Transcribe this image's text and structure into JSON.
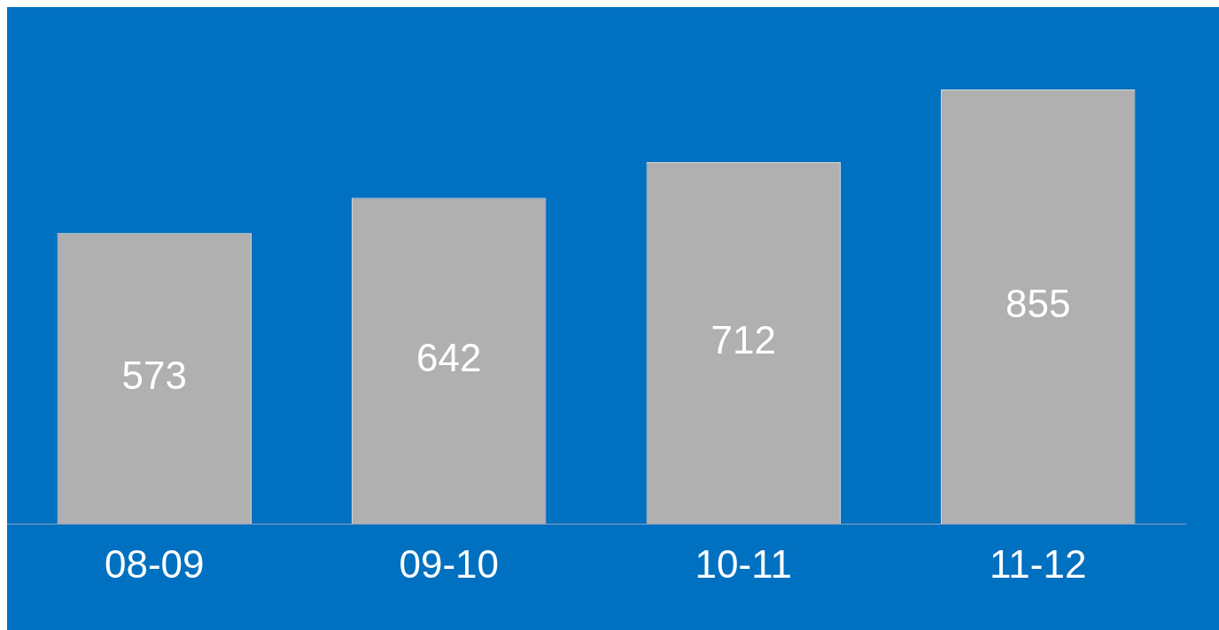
{
  "chart_data": {
    "type": "bar",
    "categories": [
      "08-09",
      "09-10",
      "10-11",
      "11-12"
    ],
    "values": [
      573,
      642,
      712,
      855
    ],
    "color": "#b0b0b0",
    "data_labels": true,
    "grid": false,
    "legend": false
  }
}
